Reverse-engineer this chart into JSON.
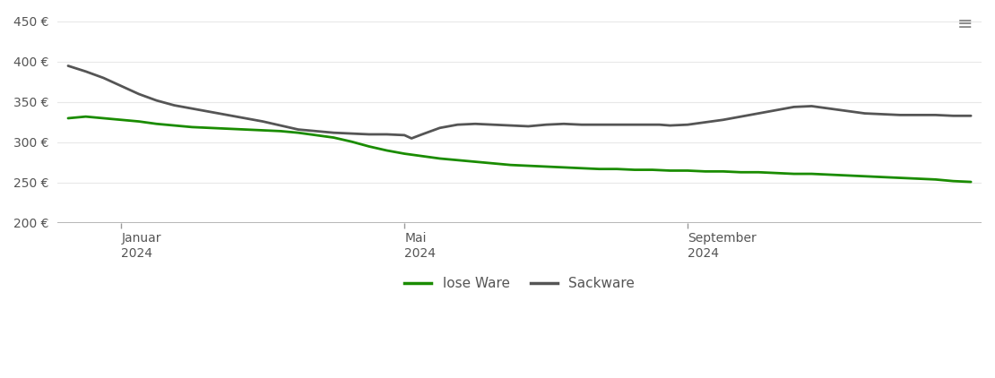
{
  "background_color": "#ffffff",
  "grid_color": "#e8e8e8",
  "lose_ware_color": "#1a8c00",
  "sackware_color": "#555555",
  "legend_labels": [
    "lose Ware",
    "Sackware"
  ],
  "ylim": [
    200,
    460
  ],
  "yticks": [
    200,
    250,
    300,
    350,
    400,
    450
  ],
  "ytick_labels": [
    "200 €",
    "250 €",
    "300 €",
    "350 €",
    "400 €",
    "450 €"
  ],
  "x_tick_labels": [
    "Januar\n2024",
    "Mai\n2024",
    "September\n2024"
  ],
  "lose_ware_x": [
    -0.5,
    0.0,
    0.5,
    1.0,
    1.5,
    2.0,
    2.5,
    3.0,
    3.5,
    4.0,
    4.5,
    5.0,
    5.5,
    6.0,
    6.5,
    7.0,
    7.5,
    8.0,
    8.5,
    9.0,
    9.5,
    10.0,
    10.5,
    11.0,
    11.5,
    12.0,
    12.5,
    13.0,
    13.5,
    14.0,
    14.5,
    15.0,
    15.5,
    16.0,
    16.5,
    17.0,
    17.5,
    18.0,
    18.5,
    19.0,
    19.5,
    20.0,
    20.5,
    21.0,
    21.5,
    22.0,
    22.5,
    23.0,
    23.5,
    24.0,
    24.5,
    25.0
  ],
  "lose_ware": [
    330,
    332,
    330,
    328,
    326,
    323,
    321,
    319,
    318,
    317,
    316,
    315,
    314,
    312,
    309,
    306,
    301,
    295,
    290,
    286,
    283,
    280,
    278,
    276,
    274,
    272,
    271,
    270,
    269,
    268,
    267,
    267,
    266,
    266,
    265,
    265,
    264,
    264,
    263,
    263,
    262,
    261,
    261,
    260,
    259,
    258,
    257,
    256,
    255,
    254,
    252,
    251
  ],
  "sackware_x": [
    -0.5,
    0.0,
    0.5,
    1.0,
    1.5,
    2.0,
    2.5,
    3.0,
    3.5,
    4.0,
    4.5,
    5.0,
    5.5,
    6.0,
    6.5,
    7.0,
    7.5,
    8.0,
    8.5,
    9.0,
    9.2,
    9.5,
    10.0,
    10.5,
    11.0,
    11.5,
    12.0,
    12.5,
    13.0,
    13.5,
    14.0,
    14.5,
    15.0,
    15.5,
    16.0,
    16.2,
    16.5,
    17.0,
    17.5,
    18.0,
    18.5,
    19.0,
    19.5,
    20.0,
    20.5,
    21.0,
    21.5,
    22.0,
    22.5,
    23.0,
    23.5,
    24.0,
    24.5,
    25.0
  ],
  "sackware": [
    395,
    388,
    380,
    370,
    360,
    352,
    346,
    342,
    338,
    334,
    330,
    326,
    321,
    316,
    314,
    312,
    311,
    310,
    310,
    309,
    305,
    310,
    318,
    322,
    323,
    322,
    321,
    320,
    322,
    323,
    322,
    322,
    322,
    322,
    322,
    322,
    321,
    322,
    325,
    328,
    332,
    336,
    340,
    344,
    345,
    342,
    339,
    336,
    335,
    334,
    334,
    334,
    333,
    333
  ],
  "xlim": [
    -0.8,
    25.3
  ],
  "x_tick_positions": [
    1.0,
    9.0,
    17.0
  ]
}
